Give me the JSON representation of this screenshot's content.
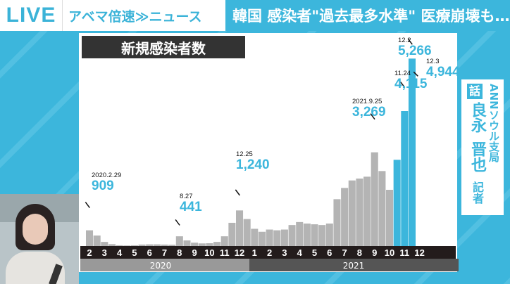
{
  "header": {
    "live": "LIVE",
    "program": "アベマ倍速≫ニュース",
    "headline": "韓国 感染者\"過去最多水準\" 医療崩壊も…"
  },
  "side": {
    "tag": "話",
    "name1": "良永",
    "name2": "晋也",
    "title": "記者",
    "bureau": "ANNソウル支局"
  },
  "colors": {
    "accent": "#3cb6dc",
    "bar": "#b4b4b4",
    "highlight": "#3cb6dc"
  },
  "chart_data": {
    "type": "bar",
    "title": "新規感染者数",
    "x_tick_labels": [
      "2",
      "3",
      "4",
      "5",
      "6",
      "7",
      "8",
      "9",
      "10",
      "11",
      "12",
      "1",
      "2",
      "3",
      "4",
      "5",
      "6",
      "7",
      "8",
      "9",
      "10",
      "11",
      "12"
    ],
    "years": [
      "2020",
      "2021"
    ],
    "periods": [
      "2020-02b",
      "2020-03a",
      "2020-03b",
      "2020-04a",
      "2020-04b",
      "2020-05a",
      "2020-05b",
      "2020-06a",
      "2020-06b",
      "2020-07a",
      "2020-07b",
      "2020-08a",
      "2020-08b",
      "2020-09a",
      "2020-09b",
      "2020-10a",
      "2020-10b",
      "2020-11a",
      "2020-11b",
      "2020-12a",
      "2020-12b",
      "2021-01a",
      "2021-01b",
      "2021-02a",
      "2021-02b",
      "2021-03a",
      "2021-03b",
      "2021-04a",
      "2021-04b",
      "2021-05a",
      "2021-05b",
      "2021-06a",
      "2021-06b",
      "2021-07a",
      "2021-07b",
      "2021-08a",
      "2021-08b",
      "2021-09a",
      "2021-09b",
      "2021-10a",
      "2021-10b",
      "2021-11a",
      "2021-11b",
      "2021-12a"
    ],
    "values": [
      420,
      280,
      110,
      50,
      20,
      15,
      20,
      40,
      45,
      45,
      40,
      35,
      260,
      150,
      90,
      70,
      75,
      110,
      260,
      620,
      950,
      720,
      460,
      380,
      440,
      420,
      440,
      560,
      640,
      600,
      580,
      560,
      600,
      1250,
      1550,
      1750,
      1800,
      1850,
      2500,
      2000,
      1500,
      2300,
      3600,
      5000
    ],
    "highlight_from": "2021-11a",
    "ylim": [
      0,
      5400
    ],
    "annotations": [
      {
        "date": "2020.2.29",
        "value": "909",
        "at": 909,
        "period": 0
      },
      {
        "date": "8.27",
        "value": "441",
        "at": 441,
        "period": 12
      },
      {
        "date": "12.25",
        "value": "1,240",
        "at": 1240,
        "period": 20
      },
      {
        "date": "2021.9.25",
        "value": "3,269",
        "at": 3269,
        "period": 38
      },
      {
        "date": "11.24",
        "value": "4,115",
        "at": 4115,
        "period": 42
      },
      {
        "date": "12.2",
        "value": "5,266",
        "at": 5266,
        "period": 43
      },
      {
        "date": "12.3",
        "value": "4,944",
        "at": 4944,
        "period": 43
      }
    ]
  }
}
